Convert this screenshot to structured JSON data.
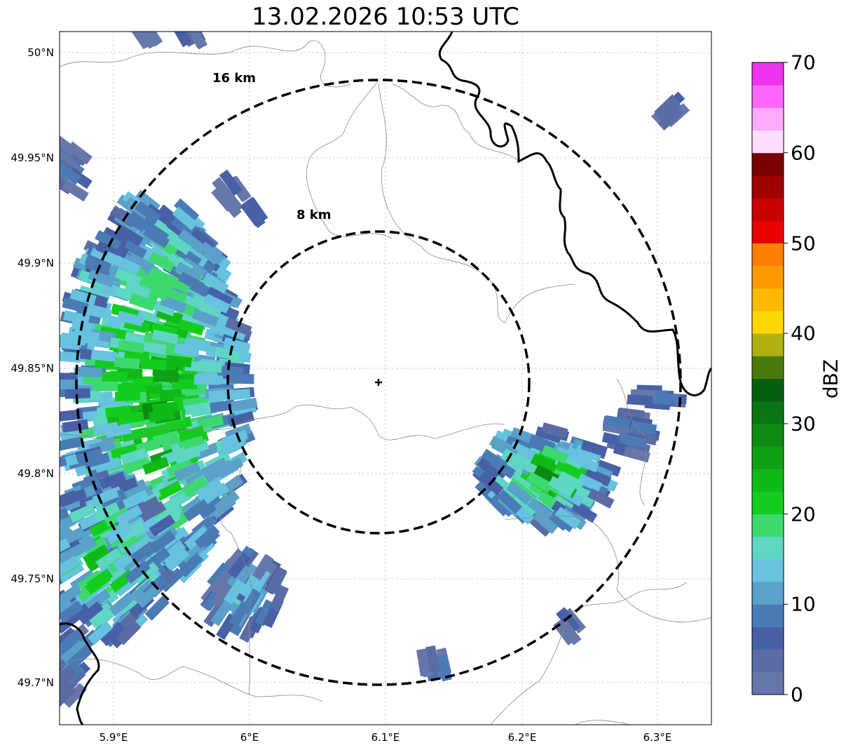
{
  "title": "13.02.2026 10:53 UTC",
  "lat_ticks": [
    "50°N",
    "49.95°N",
    "49.9°N",
    "49.85°N",
    "49.8°N",
    "49.75°N",
    "49.7°N"
  ],
  "lon_ticks": [
    "5.9°E",
    "6°E",
    "6.1°E",
    "6.2°E",
    "6.3°E"
  ],
  "rings": [
    {
      "label": "16 km",
      "radius_km": 16
    },
    {
      "label": "8 km",
      "radius_km": 8
    }
  ],
  "colorbar": {
    "label": "dBZ",
    "ticks": [
      "0",
      "10",
      "20",
      "30",
      "40",
      "50",
      "60",
      "70"
    ],
    "range": [
      0,
      70
    ],
    "step": 2.5,
    "colors": [
      "#6677aa",
      "#5a6ca4",
      "#4760a6",
      "#4a7bb5",
      "#5aa0c8",
      "#66c2de",
      "#5fd6c4",
      "#3ed870",
      "#14cc1e",
      "#10b818",
      "#10a015",
      "#0d8a12",
      "#0a7514",
      "#055e10",
      "#4a7a0a",
      "#b0b010",
      "#ffd700",
      "#ffb900",
      "#ff9a00",
      "#ff8000",
      "#e80000",
      "#c80000",
      "#a00000",
      "#780000",
      "#ffddff",
      "#ffaaff",
      "#ff66ff",
      "#ee33ee"
    ]
  }
}
